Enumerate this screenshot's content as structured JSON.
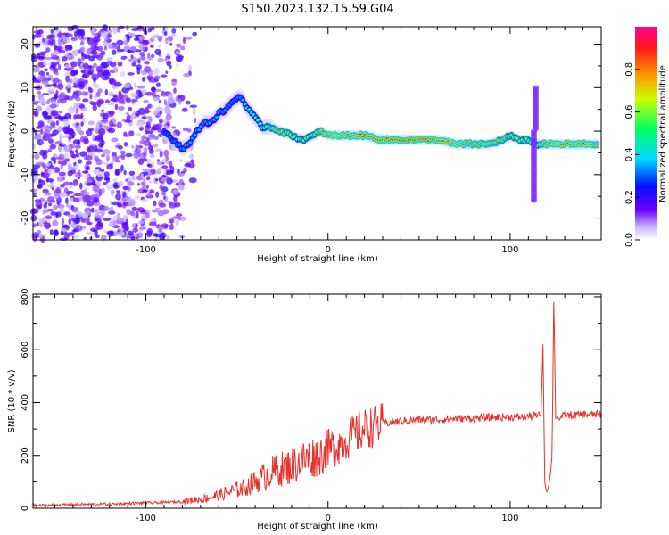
{
  "title": "S150.2023.132.15.59.G04",
  "chart_data": [
    {
      "type": "heatmap",
      "xlabel": "Height of straight line (km)",
      "ylabel": "Frequency (Hz)",
      "xlim": [
        -162,
        150
      ],
      "ylim": [
        -25,
        24
      ],
      "xticks": [
        -100,
        0,
        100
      ],
      "yticks": [
        -20,
        -10,
        0,
        10,
        20
      ],
      "colorbar": {
        "label": "Normalized spectral amplitude",
        "range": [
          0,
          1
        ],
        "ticks": [
          0.0,
          0.2,
          0.4,
          0.6,
          0.8
        ]
      },
      "ridge": {
        "x": [
          -90,
          -85,
          -80,
          -76,
          -72,
          -68,
          -64,
          -60,
          -56,
          -52,
          -48,
          -44,
          -40,
          -36,
          -32,
          -26,
          -20,
          -14,
          -8,
          -4,
          0,
          10,
          20,
          30,
          40,
          50,
          60,
          70,
          80,
          88,
          96,
          100,
          104,
          110,
          114,
          118,
          122,
          130,
          140,
          148
        ],
        "y": [
          0,
          -2,
          -4,
          -3,
          0,
          2,
          2,
          4,
          5,
          7,
          8,
          5,
          3,
          1,
          1,
          0,
          -1,
          -2,
          -1,
          0,
          -1,
          -1,
          -1,
          -2,
          -2,
          -2,
          -2,
          -3,
          -3,
          -3,
          -2,
          -1,
          -2,
          -2,
          -3,
          -3,
          -3,
          -3,
          -3,
          -3
        ],
        "amplitude": [
          0.25,
          0.3,
          0.35,
          0.35,
          0.4,
          0.35,
          0.4,
          0.35,
          0.35,
          0.3,
          0.35,
          0.5,
          0.55,
          0.6,
          0.7,
          0.75,
          0.7,
          0.65,
          0.7,
          0.75,
          0.85,
          0.85,
          0.9,
          0.9,
          0.95,
          0.95,
          0.9,
          0.85,
          0.8,
          0.8,
          0.75,
          0.7,
          0.7,
          0.7,
          0.65,
          0.8,
          0.85,
          0.9,
          0.9,
          0.8
        ]
      },
      "spike": {
        "x": 113,
        "ylim": [
          -16,
          10
        ]
      }
    },
    {
      "type": "line",
      "xlabel": "Height of straight line (km)",
      "ylabel": "SNR (10 * v/v)",
      "xlim": [
        -162,
        150
      ],
      "ylim": [
        0,
        810
      ],
      "xticks": [
        -100,
        0,
        100
      ],
      "yticks": [
        0,
        200,
        400,
        600,
        800
      ],
      "color": "#e8302c",
      "x": [
        -162,
        -150,
        -140,
        -130,
        -120,
        -110,
        -100,
        -90,
        -80,
        -75,
        -70,
        -65,
        -60,
        -55,
        -50,
        -45,
        -40,
        -35,
        -30,
        -25,
        -20,
        -15,
        -10,
        -5,
        0,
        5,
        10,
        15,
        20,
        25,
        30,
        40,
        50,
        60,
        70,
        80,
        90,
        100,
        105,
        110,
        114,
        116,
        117,
        118,
        119,
        120,
        121,
        122,
        123,
        124,
        125,
        130,
        140,
        150
      ],
      "y": [
        10,
        12,
        14,
        15,
        15,
        18,
        20,
        22,
        25,
        30,
        35,
        40,
        50,
        60,
        70,
        80,
        100,
        120,
        140,
        150,
        160,
        180,
        190,
        200,
        220,
        240,
        260,
        280,
        300,
        310,
        320,
        330,
        335,
        335,
        340,
        340,
        345,
        345,
        345,
        348,
        350,
        350,
        355,
        620,
        100,
        60,
        80,
        120,
        200,
        810,
        340,
        350,
        355,
        355
      ]
    }
  ]
}
